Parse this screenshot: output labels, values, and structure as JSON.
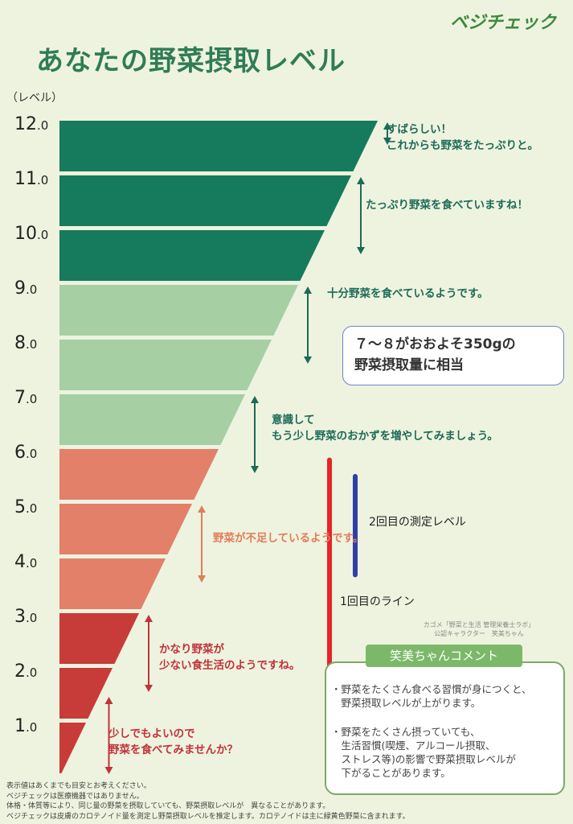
{
  "logo": "ベジチェック",
  "title": "あなたの野菜摂取レベル",
  "y_unit": "（レベル）",
  "messages": {
    "m1a": "すばらしい！",
    "m1b": "これからも野菜をたっぷりと。",
    "m2": "たっぷり野菜を食べていますね！",
    "m3": "十分野菜を食べているようです。",
    "m4a": "意識して",
    "m4b": "もう少し野菜のおかずを増やしてみましょう。",
    "m5": "野菜が不足しているようです。",
    "m6a": "かなり野菜が",
    "m6b": "少ない食生活のようですね。",
    "m7a": "少しでもよいので",
    "m7b": "野菜を食べてみませんか？"
  },
  "info_box": {
    "line1": "７～８がおおよそ350gの",
    "line2": "野菜摂取量に相当"
  },
  "annotations": {
    "second": "2回目の測定レベル",
    "first": "1回目のライン"
  },
  "credit": {
    "line1": "カゴメ「野菜と生活 管理栄養士ラボ」",
    "line2": "公認キャラクター　笑美ちゃん"
  },
  "comment": {
    "title": "笑美ちゃんコメント",
    "b1a": "・野菜をたくさん食べる習慣が身につくと、",
    "b1b": "　野菜摂取レベルが上がります。",
    "b2a": "・野菜をたくさん摂っていても、",
    "b2b": "　生活習慣(喫煙、アルコール摂取、",
    "b2c": "　ストレス等)の影響で野菜摂取レベルが",
    "b2d": "　下がることがあります。"
  },
  "footer": {
    "l1": "表示値はあくまでも目安とお考えください。",
    "l2": "ベジチェックは医療機器ではありません。",
    "l3": "体格・体質等により、同じ量の野菜を摂取していても、野菜摂取レベルが　異なることがあります。",
    "l4": "ベジチェックは皮膚のカロテノイド量を測定し野菜摂取レベルを推定します。カロテノイドは主に緑黄色野菜に含まれます。"
  },
  "chart_data": {
    "type": "bar",
    "orientation": "horizontal",
    "ylabel": "（レベル）",
    "y_ticks": [
      "1.0",
      "2.0",
      "3.0",
      "4.0",
      "5.0",
      "6.0",
      "7.0",
      "8.0",
      "9.0",
      "10.0",
      "11.0",
      "12.0"
    ],
    "ylim": [
      0,
      12
    ],
    "bands": [
      {
        "from": 11,
        "to": 12,
        "color": "#167a5c"
      },
      {
        "from": 10,
        "to": 11,
        "color": "#167a5c"
      },
      {
        "from": 9,
        "to": 10,
        "color": "#167a5c"
      },
      {
        "from": 8,
        "to": 9,
        "color": "#a6cfa4"
      },
      {
        "from": 7,
        "to": 8,
        "color": "#a6cfa4"
      },
      {
        "from": 6,
        "to": 7,
        "color": "#a6cfa4"
      },
      {
        "from": 5,
        "to": 6,
        "color": "#e2806a"
      },
      {
        "from": 4,
        "to": 5,
        "color": "#e2806a"
      },
      {
        "from": 3,
        "to": 4,
        "color": "#e2806a"
      },
      {
        "from": 2,
        "to": 3,
        "color": "#c73b39"
      },
      {
        "from": 1,
        "to": 2,
        "color": "#c73b39"
      },
      {
        "from": 0,
        "to": 1,
        "color": "#c73b39"
      }
    ],
    "range_arrows": [
      {
        "from": 11.5,
        "to": 12,
        "color": "#1c6b58"
      },
      {
        "from": 9.5,
        "to": 11,
        "color": "#1c6b58"
      },
      {
        "from": 7.5,
        "to": 9,
        "color": "#1c6b58"
      },
      {
        "from": 5.5,
        "to": 7,
        "color": "#1c6b58"
      },
      {
        "from": 3.5,
        "to": 5,
        "color": "#e27d5a"
      },
      {
        "from": 1.5,
        "to": 3,
        "color": "#c0333b"
      },
      {
        "from": 0,
        "to": 1.5,
        "color": "#c0333b"
      }
    ],
    "markers": [
      {
        "label": "1回目のライン",
        "from": 1.2,
        "to": 5.8,
        "color": "#e8232b"
      },
      {
        "label": "2回目の測定レベル",
        "from": 3.7,
        "to": 5.5,
        "color": "#2f3fa8"
      }
    ]
  },
  "colors": {
    "title": "#2f7c56",
    "dark_green": "#167a5c",
    "light_green": "#a6cfa4",
    "salmon": "#e2806a",
    "red": "#c73b39"
  }
}
